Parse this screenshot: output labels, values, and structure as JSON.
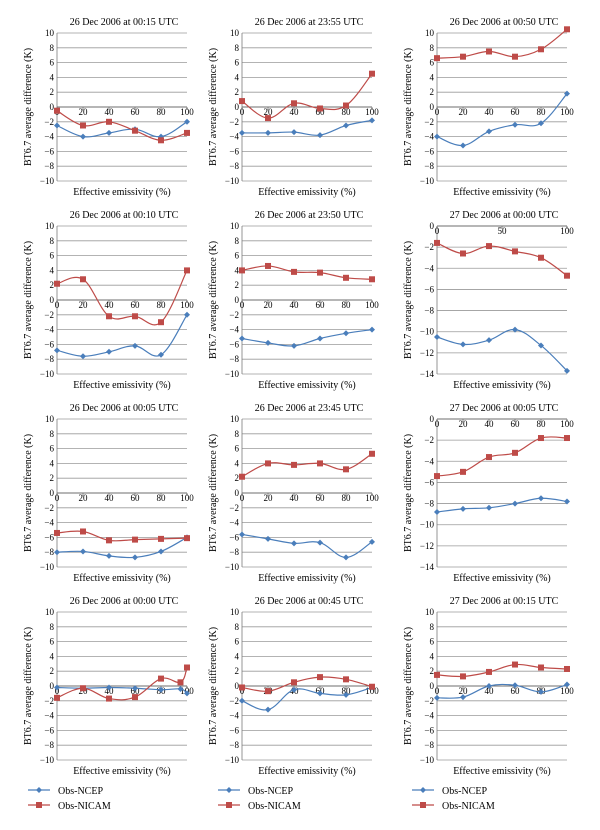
{
  "legend": {
    "ncep_label": "Obs-NCEP",
    "nicam_label": "Obs-NICAM",
    "ncep_color": "#4a7ebb",
    "nicam_color": "#be4b48"
  },
  "chart_data": [
    {
      "type": "line",
      "title": "26 Dec 2006 at 00:15 UTC",
      "xlabel": "Effective emissivity (%)",
      "ylabel": "BT6.7 average difference (K)",
      "x": [
        0,
        20,
        40,
        60,
        80,
        100
      ],
      "ylim": [
        -10,
        10
      ],
      "yticks": [
        10,
        8,
        6,
        4,
        2,
        0,
        -2,
        -4,
        -6,
        -8,
        -10
      ],
      "xticks": [
        0,
        20,
        40,
        60,
        80,
        100
      ],
      "series": [
        {
          "name": "Obs-NCEP",
          "values": [
            -2.5,
            -4.0,
            -3.5,
            -3.0,
            -4.0,
            -2.0
          ]
        },
        {
          "name": "Obs-NICAM",
          "values": [
            -0.5,
            -2.5,
            -2.0,
            -3.2,
            -4.5,
            -3.5
          ]
        }
      ]
    },
    {
      "type": "line",
      "title": "26 Dec 2006 at 23:55 UTC",
      "xlabel": "Effective emissivity (%)",
      "ylabel": "BT6.7 average difference (K)",
      "x": [
        0,
        20,
        40,
        60,
        80,
        100
      ],
      "ylim": [
        -10,
        10
      ],
      "yticks": [
        10,
        8,
        6,
        4,
        2,
        0,
        -2,
        -4,
        -6,
        -8,
        -10
      ],
      "xticks": [
        0,
        20,
        40,
        60,
        80,
        100
      ],
      "series": [
        {
          "name": "Obs-NCEP",
          "values": [
            -3.5,
            -3.5,
            -3.4,
            -3.8,
            -2.5,
            -1.8
          ]
        },
        {
          "name": "Obs-NICAM",
          "values": [
            0.8,
            -1.5,
            0.5,
            -0.2,
            0.2,
            4.5
          ]
        }
      ]
    },
    {
      "type": "line",
      "title": "26 Dec 2006 at 00:50 UTC",
      "xlabel": "Effective emissivity (%)",
      "ylabel": "BT6.7 average difference (K)",
      "x": [
        0,
        20,
        40,
        60,
        80,
        100
      ],
      "ylim": [
        -10,
        10
      ],
      "yticks": [
        10,
        8,
        6,
        4,
        2,
        0,
        -2,
        -4,
        -6,
        -8,
        -10
      ],
      "xticks": [
        0,
        20,
        40,
        60,
        80,
        100
      ],
      "series": [
        {
          "name": "Obs-NCEP",
          "values": [
            -4.0,
            -5.2,
            -3.3,
            -2.4,
            -2.2,
            1.8
          ]
        },
        {
          "name": "Obs-NICAM",
          "values": [
            6.6,
            6.8,
            7.5,
            6.8,
            7.8,
            10.5
          ]
        }
      ]
    },
    {
      "type": "line",
      "title": "26 Dec 2006 at 00:10 UTC",
      "xlabel": "Effective emissivity (%)",
      "ylabel": "BT6.7 average difference (K)",
      "x": [
        0,
        20,
        40,
        60,
        80,
        100
      ],
      "ylim": [
        -10,
        10
      ],
      "yticks": [
        10,
        8,
        6,
        4,
        2,
        0,
        -2,
        -4,
        -6,
        -8,
        -10
      ],
      "xticks": [
        0,
        20,
        40,
        60,
        80,
        100
      ],
      "series": [
        {
          "name": "Obs-NCEP",
          "values": [
            -6.8,
            -7.6,
            -7.0,
            -6.2,
            -7.4,
            -2.0
          ]
        },
        {
          "name": "Obs-NICAM",
          "values": [
            2.2,
            2.8,
            -2.2,
            -2.2,
            -3.0,
            4.0
          ]
        }
      ]
    },
    {
      "type": "line",
      "title": "26 Dec 2006 at 23:50 UTC",
      "xlabel": "Effective emissivity (%)",
      "ylabel": "BT6.7 average difference (K)",
      "x": [
        0,
        20,
        40,
        60,
        80,
        100
      ],
      "ylim": [
        -10,
        10
      ],
      "yticks": [
        10,
        8,
        6,
        4,
        2,
        0,
        -2,
        -4,
        -6,
        -8,
        -10
      ],
      "xticks": [
        0,
        20,
        40,
        60,
        80,
        100
      ],
      "series": [
        {
          "name": "Obs-NCEP",
          "values": [
            -5.2,
            -5.8,
            -6.2,
            -5.2,
            -4.5,
            -4.0
          ]
        },
        {
          "name": "Obs-NICAM",
          "values": [
            4.0,
            4.6,
            3.8,
            3.7,
            3.0,
            2.8
          ]
        }
      ]
    },
    {
      "type": "line",
      "title": "27 Dec 2006 at 00:00 UTC",
      "xlabel": "Effective emissivity (%)",
      "ylabel": "BT6.7 average difference (K)",
      "x": [
        0,
        20,
        40,
        60,
        80,
        100
      ],
      "ylim": [
        -14,
        0
      ],
      "yticks": [
        0,
        -2,
        -4,
        -6,
        -8,
        -10,
        -12,
        -14
      ],
      "xticks": [
        0,
        50,
        100
      ],
      "series": [
        {
          "name": "Obs-NCEP",
          "values": [
            -10.5,
            -11.2,
            -10.8,
            -9.8,
            -11.3,
            -13.7
          ]
        },
        {
          "name": "Obs-NICAM",
          "values": [
            -1.6,
            -2.6,
            -1.9,
            -2.4,
            -3.0,
            -4.7
          ]
        }
      ]
    },
    {
      "type": "line",
      "title": "26 Dec 2006 at 00:05 UTC",
      "xlabel": "Effective emissivity (%)",
      "ylabel": "BT6.7 average difference (K)",
      "x": [
        0,
        20,
        40,
        60,
        80,
        100
      ],
      "ylim": [
        -10,
        10
      ],
      "yticks": [
        10,
        8,
        6,
        4,
        2,
        0,
        -2,
        -4,
        -6,
        -8,
        -10
      ],
      "xticks": [
        0,
        20,
        40,
        60,
        80,
        100
      ],
      "series": [
        {
          "name": "Obs-NCEP",
          "values": [
            -8.0,
            -7.9,
            -8.5,
            -8.7,
            -7.9,
            -6.0
          ]
        },
        {
          "name": "Obs-NICAM",
          "values": [
            -5.4,
            -5.2,
            -6.4,
            -6.3,
            -6.2,
            -6.1
          ]
        }
      ]
    },
    {
      "type": "line",
      "title": "26 Dec 2006 at 23:45 UTC",
      "xlabel": "Effective emissivity (%)",
      "ylabel": "BT6.7 average difference (K)",
      "x": [
        0,
        20,
        40,
        60,
        80,
        100
      ],
      "ylim": [
        -10,
        10
      ],
      "yticks": [
        10,
        8,
        6,
        4,
        2,
        0,
        -2,
        -4,
        -6,
        -8,
        -10
      ],
      "xticks": [
        0,
        20,
        40,
        60,
        80,
        100
      ],
      "series": [
        {
          "name": "Obs-NCEP",
          "values": [
            -5.6,
            -6.2,
            -6.8,
            -6.7,
            -8.7,
            -6.6
          ]
        },
        {
          "name": "Obs-NICAM",
          "values": [
            2.2,
            4.0,
            3.8,
            4.0,
            3.2,
            5.3
          ]
        }
      ]
    },
    {
      "type": "line",
      "title": "27 Dec 2006 at 00:05 UTC",
      "xlabel": "Effective emissivity (%)",
      "ylabel": "BT6.7 average difference (K)",
      "x": [
        0,
        20,
        40,
        60,
        80,
        100
      ],
      "ylim": [
        -14,
        0
      ],
      "yticks": [
        0,
        -2,
        -4,
        -6,
        -8,
        -10,
        -12,
        -14
      ],
      "xticks": [
        0,
        20,
        40,
        60,
        80,
        100
      ],
      "series": [
        {
          "name": "Obs-NCEP",
          "values": [
            -8.8,
            -8.5,
            -8.4,
            -8.0,
            -7.5,
            -7.8
          ]
        },
        {
          "name": "Obs-NICAM",
          "values": [
            -5.4,
            -5.0,
            -3.6,
            -3.2,
            -1.8,
            -1.8
          ]
        }
      ]
    },
    {
      "type": "line",
      "title": "26 Dec 2006 at 00:00 UTC",
      "xlabel": "Effective emissivity (%)",
      "ylabel": "BT6.7 average difference (K)",
      "x": [
        0,
        20,
        40,
        60,
        80,
        95,
        100
      ],
      "ylim": [
        -10,
        10
      ],
      "yticks": [
        10,
        8,
        6,
        4,
        2,
        0,
        -2,
        -4,
        -6,
        -8,
        -10
      ],
      "xticks": [
        0,
        20,
        40,
        60,
        80,
        100
      ],
      "series": [
        {
          "name": "Obs-NCEP",
          "values": [
            -0.2,
            -0.3,
            -0.2,
            -0.3,
            -0.5,
            -0.4,
            -1.0
          ]
        },
        {
          "name": "Obs-NICAM",
          "values": [
            -1.6,
            -0.3,
            -1.7,
            -1.5,
            1.0,
            0.5,
            2.5
          ]
        }
      ]
    },
    {
      "type": "line",
      "title": "26 Dec 2006 at 00:45 UTC",
      "xlabel": "Effective emissivity (%)",
      "ylabel": "BT6.7 average difference (K)",
      "x": [
        0,
        20,
        40,
        60,
        80,
        100
      ],
      "ylim": [
        -10,
        10
      ],
      "yticks": [
        10,
        8,
        6,
        4,
        2,
        0,
        -2,
        -4,
        -6,
        -8,
        -10
      ],
      "xticks": [
        0,
        20,
        40,
        60,
        80,
        100
      ],
      "series": [
        {
          "name": "Obs-NCEP",
          "values": [
            -2.0,
            -3.2,
            -0.5,
            -1.0,
            -1.2,
            -0.2
          ]
        },
        {
          "name": "Obs-NICAM",
          "values": [
            -0.2,
            -0.7,
            0.5,
            1.2,
            0.9,
            -0.1
          ]
        }
      ]
    },
    {
      "type": "line",
      "title": "27 Dec 2006 at 00:15 UTC",
      "xlabel": "Effective emissivity (%)",
      "ylabel": "BT6.7 average difference (K)",
      "x": [
        0,
        20,
        40,
        60,
        80,
        100
      ],
      "ylim": [
        -10,
        10
      ],
      "yticks": [
        10,
        8,
        6,
        4,
        2,
        0,
        -2,
        -4,
        -6,
        -8,
        -10
      ],
      "xticks": [
        0,
        20,
        40,
        60,
        80,
        100
      ],
      "series": [
        {
          "name": "Obs-NCEP",
          "values": [
            -1.6,
            -1.5,
            0.0,
            0.1,
            -0.8,
            0.2
          ]
        },
        {
          "name": "Obs-NICAM",
          "values": [
            1.5,
            1.3,
            1.9,
            2.9,
            2.5,
            2.3
          ]
        }
      ]
    }
  ]
}
